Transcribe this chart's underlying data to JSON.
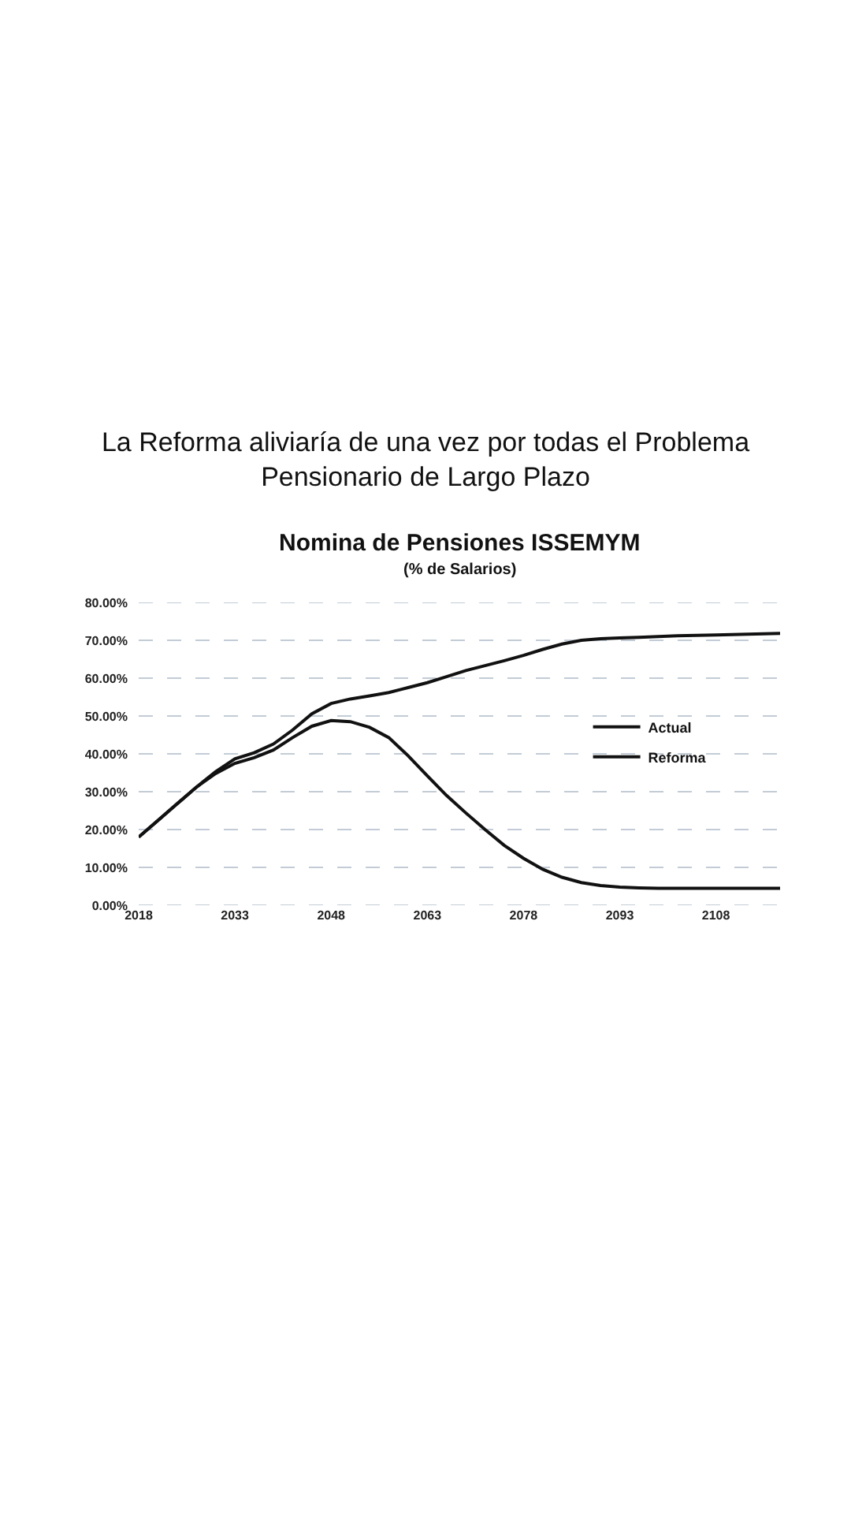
{
  "chart_data": {
    "type": "line",
    "title": "La Reforma aliviaría de una vez por todas el Problema\nPensionario de Largo Plazo",
    "subtitle": "Nomina de Pensiones ISSEMYM",
    "annotations": [
      "(% de Salarios)"
    ],
    "x": [
      2018,
      2021,
      2024,
      2027,
      2030,
      2033,
      2036,
      2039,
      2042,
      2045,
      2048,
      2051,
      2054,
      2057,
      2060,
      2063,
      2066,
      2069,
      2072,
      2075,
      2078,
      2081,
      2084,
      2087,
      2090,
      2093,
      2096,
      2099,
      2102,
      2105,
      2108,
      2113,
      2118
    ],
    "series": [
      {
        "name": "Actual",
        "color": "#111111",
        "values": [
          18,
          22.4,
          26.8,
          31.2,
          35.3,
          38.7,
          40.3,
          42.6,
          46.3,
          50.6,
          53.3,
          54.5,
          55.3,
          56.2,
          57.5,
          58.8,
          60.4,
          62,
          63.3,
          64.6,
          66,
          67.6,
          69,
          70,
          70.4,
          70.6,
          70.8,
          71,
          71.2,
          71.3,
          71.4,
          71.6,
          71.8
        ]
      },
      {
        "name": "Reforma",
        "color": "#111111",
        "values": [
          18,
          22.4,
          26.8,
          31.2,
          34.8,
          37.5,
          39,
          41,
          44.3,
          47.3,
          48.8,
          48.5,
          47,
          44.3,
          39.5,
          34.2,
          29,
          24.4,
          20,
          15.8,
          12.4,
          9.5,
          7.4,
          6,
          5.2,
          4.8,
          4.6,
          4.5,
          4.5,
          4.5,
          4.5,
          4.5,
          4.5
        ]
      }
    ],
    "xlim": [
      2018,
      2118
    ],
    "xticks": [
      2018,
      2033,
      2048,
      2063,
      2078,
      2093,
      2108
    ],
    "ylim": [
      0,
      80
    ],
    "yticks": [
      {
        "value": 0,
        "label": "0.00%"
      },
      {
        "value": 10,
        "label": "10.00%"
      },
      {
        "value": 20,
        "label": "20.00%"
      },
      {
        "value": 30,
        "label": "30.00%"
      },
      {
        "value": 40,
        "label": "40.00%"
      },
      {
        "value": 50,
        "label": "50.00%"
      },
      {
        "value": 60,
        "label": "60.00%"
      },
      {
        "value": 70,
        "label": "70.00%"
      },
      {
        "value": 80,
        "label": "80.00%"
      }
    ],
    "grid": "y",
    "legend": "right",
    "marker": "none",
    "line_style": "solid"
  }
}
